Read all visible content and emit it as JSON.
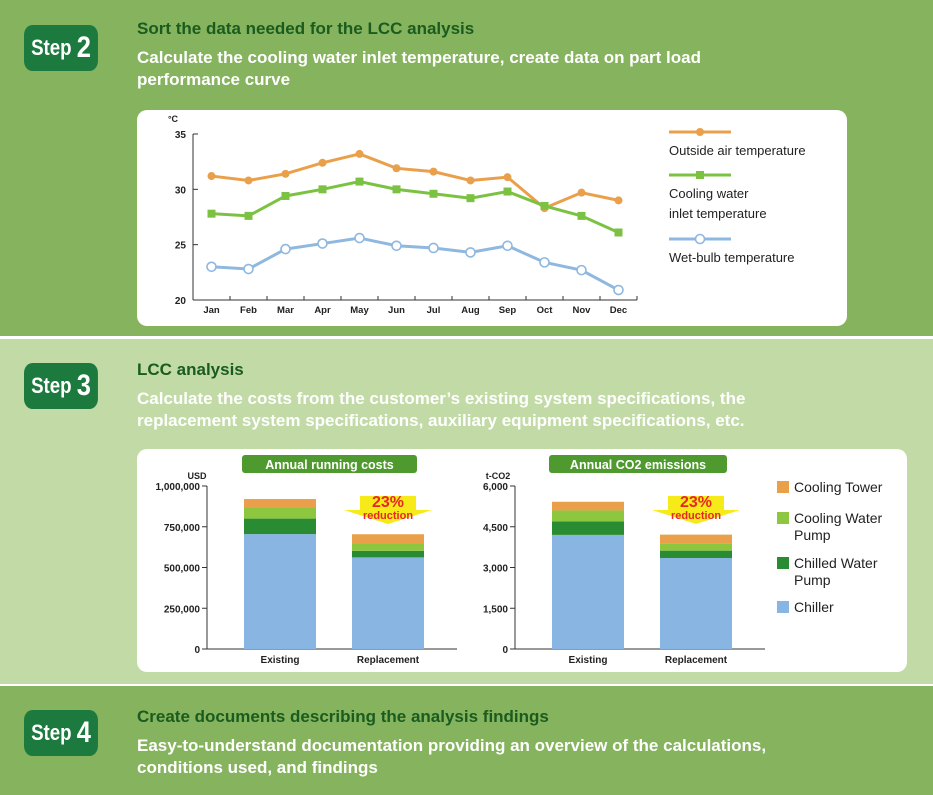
{
  "step2": {
    "badge_word": "Step",
    "badge_num": "2",
    "title": "Sort the data needed for the LCC analysis",
    "desc_line1": "Calculate the cooling water inlet temperature, create data on part load",
    "desc_line2": "performance curve"
  },
  "step3": {
    "badge_word": "Step",
    "badge_num": "3",
    "title": "LCC analysis",
    "desc_line1": "Calculate the costs from the customer’s existing system specifications, the",
    "desc_line2": "replacement system specifications, auxiliary equipment specifications, etc."
  },
  "step4": {
    "badge_word": "Step",
    "badge_num": "4",
    "title": "Create documents describing the analysis findings",
    "desc_line1": "Easy-to-understand documentation providing an overview of the calculations,",
    "desc_line2": "conditions used, and findings"
  },
  "chart_data": [
    {
      "type": "line",
      "ylabel": "°C",
      "ylim": [
        20,
        35
      ],
      "yticks": [
        20,
        25,
        30,
        35
      ],
      "categories": [
        "Jan",
        "Feb",
        "Mar",
        "Apr",
        "May",
        "Jun",
        "Jul",
        "Aug",
        "Sep",
        "Oct",
        "Nov",
        "Dec"
      ],
      "series": [
        {
          "name": "Outside air temperature",
          "color": "#eaa04a",
          "marker": "circle",
          "values": [
            31.2,
            30.8,
            31.4,
            32.4,
            33.2,
            31.9,
            31.6,
            30.8,
            31.1,
            28.3,
            29.7,
            29.0
          ]
        },
        {
          "name": "Cooling water inlet temperature",
          "name_line1": "Cooling water",
          "name_line2": "inlet temperature",
          "color": "#7cc242",
          "marker": "square",
          "values": [
            27.8,
            27.6,
            29.4,
            30.0,
            30.7,
            30.0,
            29.6,
            29.2,
            29.8,
            28.5,
            27.6,
            26.1
          ]
        },
        {
          "name": "Wet-bulb temperature",
          "color": "#8fb8e0",
          "marker": "hollow-circle",
          "values": [
            23.0,
            22.8,
            24.6,
            25.1,
            25.6,
            24.9,
            24.7,
            24.3,
            24.9,
            23.4,
            22.7,
            20.9
          ]
        }
      ],
      "legend": "right"
    },
    {
      "type": "bar",
      "stacked": true,
      "title": "Annual running costs",
      "ylabel": "USD",
      "ylim": [
        0,
        1000000
      ],
      "ytick_labels": [
        "0",
        "250,000",
        "500,000",
        "750,000",
        "1,000,000"
      ],
      "yticks": [
        0,
        250000,
        500000,
        750000,
        1000000
      ],
      "categories": [
        "Existing",
        "Replacement"
      ],
      "series": [
        {
          "name": "Chiller",
          "values": [
            705000,
            562000
          ]
        },
        {
          "name": "Chilled Water Pump",
          "values": [
            95000,
            40000
          ]
        },
        {
          "name": "Cooling Water Pump",
          "values": [
            65000,
            45000
          ]
        },
        {
          "name": "Cooling Tower",
          "values": [
            55000,
            57000
          ]
        }
      ],
      "annotation_pct": "23%",
      "annotation_word": "reduction"
    },
    {
      "type": "bar",
      "stacked": true,
      "title": "Annual CO2 emissions",
      "ylabel": "t-CO2",
      "ylim": [
        0,
        6000
      ],
      "ytick_labels": [
        "0",
        "1,500",
        "3,000",
        "4,500",
        "6,000"
      ],
      "yticks": [
        0,
        1500,
        3000,
        4500,
        6000
      ],
      "categories": [
        "Existing",
        "Replacement"
      ],
      "series": [
        {
          "name": "Chiller",
          "values": [
            4200,
            3350
          ]
        },
        {
          "name": "Chilled Water Pump",
          "values": [
            500,
            270
          ]
        },
        {
          "name": "Cooling Water Pump",
          "values": [
            400,
            270
          ]
        },
        {
          "name": "Cooling Tower",
          "values": [
            320,
            320
          ]
        }
      ],
      "annotation_pct": "23%",
      "annotation_word": "reduction"
    }
  ],
  "legend_bar": [
    {
      "label_line1": "Cooling Tower",
      "label_line2": "",
      "color": "#eaa04a"
    },
    {
      "label_line1": "Cooling Water",
      "label_line2": "Pump",
      "color": "#8dc63f"
    },
    {
      "label_line1": "Chilled Water",
      "label_line2": "Pump",
      "color": "#2a8c32"
    },
    {
      "label_line1": "Chiller",
      "label_line2": "",
      "color": "#88b5e2"
    }
  ],
  "bar_colors": {
    "Chiller": "#88b5e2",
    "Chilled Water Pump": "#2a8c32",
    "Cooling Water Pump": "#8dc63f",
    "Cooling Tower": "#eaa04a"
  },
  "title_box_color": "#4f9a2e",
  "arrow_color": "#f6ea18",
  "annotation_color": "#e8262a"
}
